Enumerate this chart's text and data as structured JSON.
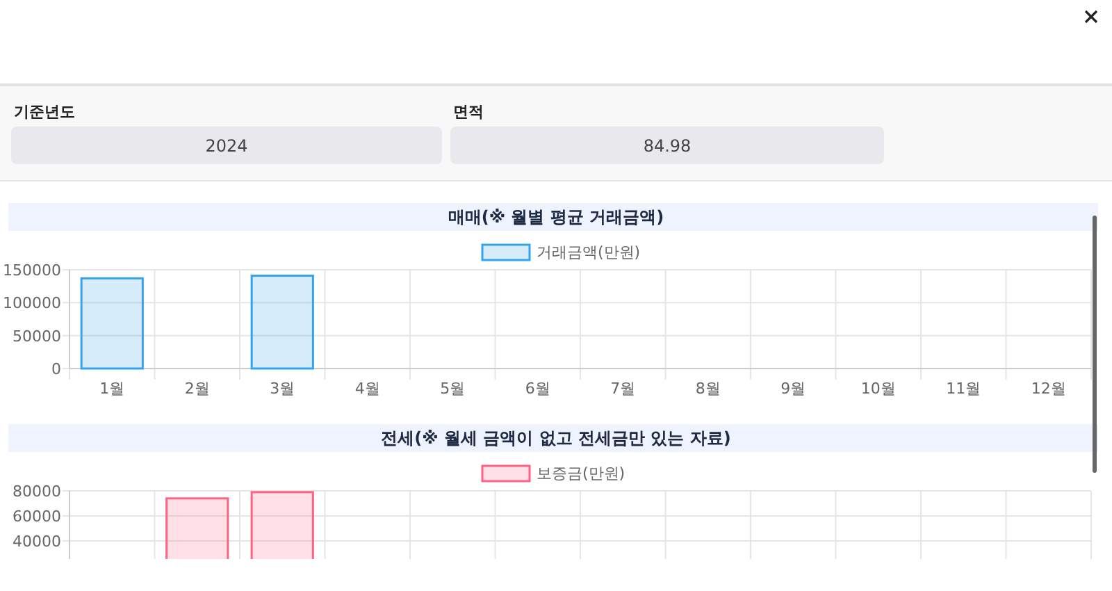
{
  "chart_data": [
    {
      "type": "other",
      "annotations": [
        "기준년도",
        "2024",
        "면적",
        "84.98"
      ]
    },
    {
      "type": "bar",
      "title": "매매(※ 월별 평균 거래금액)",
      "categories": [
        "1월",
        "2월",
        "3월",
        "4월",
        "5월",
        "6월",
        "7월",
        "8월",
        "9월",
        "10월",
        "11월",
        "12월"
      ],
      "series": [
        {
          "name": "거래금액(만원)",
          "color": "#36a2eb",
          "values": [
            137000,
            null,
            141000,
            null,
            null,
            null,
            null,
            null,
            null,
            null,
            null,
            null
          ]
        }
      ],
      "ylim": [
        0,
        150000
      ],
      "yticks": [
        0,
        50000,
        100000,
        150000
      ],
      "grid": true,
      "legend": "top"
    },
    {
      "type": "bar",
      "title": "전세(※ 월세 금액이 없고 전세금만 있는 자료)",
      "categories": [
        null,
        null,
        null,
        null,
        null,
        null,
        null,
        null,
        null,
        null,
        null,
        null
      ],
      "series": [
        {
          "name": "보증금(만원)",
          "color": "#ff6384",
          "values": [
            null,
            74000,
            79000,
            null,
            null,
            null,
            null,
            null,
            null,
            null,
            null,
            null
          ]
        }
      ],
      "ylim": [
        0,
        80000
      ],
      "yticks": [
        40000,
        60000,
        80000
      ],
      "grid": true,
      "legend": "top"
    }
  ]
}
